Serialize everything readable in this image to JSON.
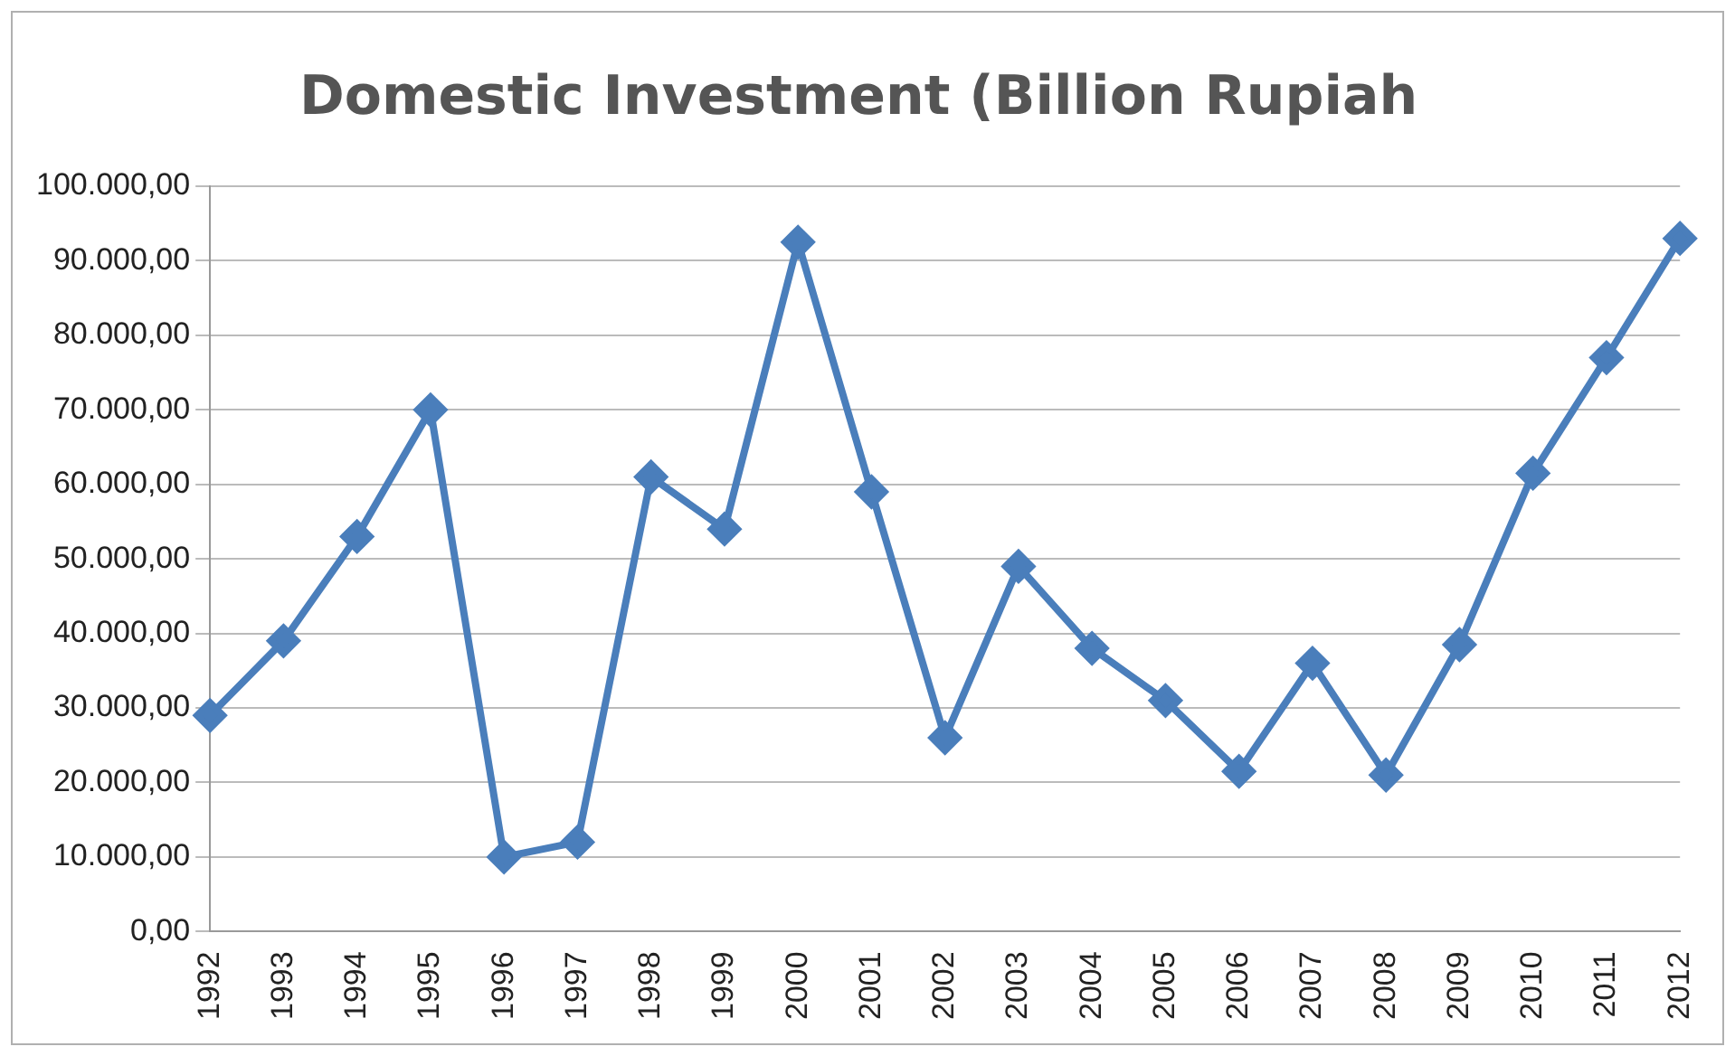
{
  "chart_data": {
    "type": "line",
    "title": "Domestic Investment (Billion Rupiah",
    "categories": [
      "1992",
      "1993",
      "1994",
      "1995",
      "1996",
      "1997",
      "1998",
      "1999",
      "2000",
      "2001",
      "2002",
      "2003",
      "2004",
      "2005",
      "2006",
      "2007",
      "2008",
      "2009",
      "2010",
      "2011",
      "2012"
    ],
    "series": [
      {
        "color": "#4a7ebb",
        "values": [
          29000,
          39000,
          53000,
          70000,
          10000,
          12000,
          61000,
          54000,
          92500,
          59000,
          26000,
          49000,
          38000,
          31000,
          21500,
          36000,
          21000,
          38500,
          61500,
          77000,
          93000
        ]
      }
    ],
    "ylim": [
      0,
      100000
    ],
    "yticks": [
      {
        "value": 0,
        "label": "0,00"
      },
      {
        "value": 10000,
        "label": "10.000,00"
      },
      {
        "value": 20000,
        "label": "20.000,00"
      },
      {
        "value": 30000,
        "label": "30.000,00"
      },
      {
        "value": 40000,
        "label": "40.000,00"
      },
      {
        "value": 50000,
        "label": "50.000,00"
      },
      {
        "value": 60000,
        "label": "60.000,00"
      },
      {
        "value": 70000,
        "label": "70.000,00"
      },
      {
        "value": 80000,
        "label": "80.000,00"
      },
      {
        "value": 90000,
        "label": "90.000,00"
      },
      {
        "value": 100000,
        "label": "100.000,00"
      }
    ],
    "grid": "y",
    "legend": false,
    "marker": "diamond",
    "line_style": "solid"
  }
}
